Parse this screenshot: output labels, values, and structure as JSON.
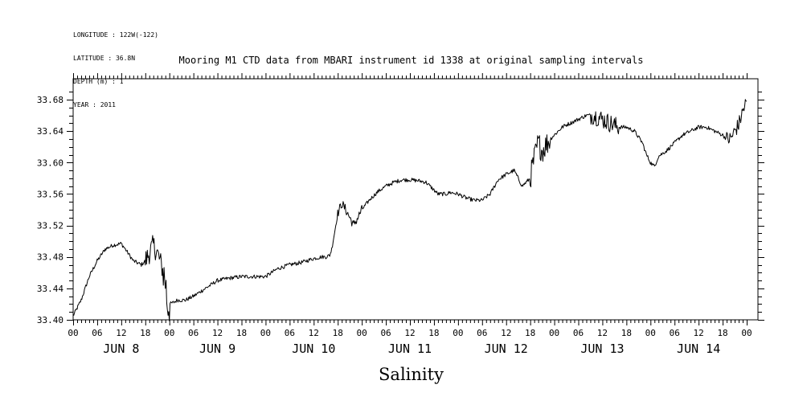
{
  "meta_lines": [
    "LONGITUDE : 122W(-122)",
    "LATITUDE : 36.8N",
    "DEPTH (m) : 1",
    "YEAR : 2011"
  ],
  "chart_data": {
    "type": "line",
    "title": "Mooring M1 CTD data from MBARI instrument id 1338 at original sampling intervals",
    "xlabel": "Salinity",
    "ylabel": "",
    "y_ticks": [
      "33.40",
      "33.44",
      "33.48",
      "33.52",
      "33.56",
      "33.60",
      "33.64",
      "33.68"
    ],
    "ylim": [
      33.4,
      33.69
    ],
    "x_unit": "hours since JUN 8 00",
    "xlim": [
      0,
      168
    ],
    "x_tick_labels": [
      "00",
      "06",
      "12",
      "18",
      "00",
      "06",
      "12",
      "18",
      "00",
      "06",
      "12",
      "18",
      "00",
      "06",
      "12",
      "18",
      "00",
      "06",
      "12",
      "18",
      "00",
      "06",
      "12",
      "18",
      "00",
      "06",
      "12",
      "18",
      "00"
    ],
    "day_labels": [
      "JUN  8",
      "JUN  9",
      "JUN 10",
      "JUN 11",
      "JUN 12",
      "JUN 13",
      "JUN 14"
    ],
    "series": [
      {
        "x": [
          0,
          2,
          4,
          6,
          8,
          10,
          12,
          13,
          15,
          17,
          18,
          19,
          20,
          21,
          22,
          23,
          23.5,
          24,
          25,
          26,
          28,
          30,
          33,
          36,
          39,
          42,
          45,
          48,
          51,
          54,
          57,
          60,
          62,
          63,
          64,
          64.5,
          65,
          66,
          67,
          68,
          69,
          70,
          71,
          72,
          74,
          76,
          78,
          80,
          82,
          84,
          86,
          88,
          90,
          91,
          92,
          93,
          94,
          96,
          98,
          100,
          102,
          104,
          106,
          108,
          110,
          112,
          114,
          115,
          116,
          117,
          118,
          119,
          120,
          121,
          122,
          123,
          124,
          126,
          128,
          130,
          132,
          134,
          136,
          138,
          140,
          142,
          143,
          144,
          145,
          146,
          148,
          150,
          152,
          154,
          156,
          158,
          160,
          162,
          163,
          164,
          165,
          166,
          167,
          168
        ],
        "y": [
          33.405,
          33.425,
          33.455,
          33.475,
          33.49,
          33.495,
          33.497,
          33.49,
          33.475,
          33.47,
          33.475,
          33.485,
          33.495,
          33.485,
          33.47,
          33.45,
          33.42,
          33.42,
          33.422,
          33.425,
          33.425,
          33.43,
          33.44,
          33.45,
          33.453,
          33.455,
          33.455,
          33.455,
          33.465,
          33.47,
          33.473,
          33.478,
          33.48,
          33.48,
          33.482,
          33.49,
          33.505,
          33.535,
          33.548,
          33.54,
          33.53,
          33.52,
          33.53,
          33.54,
          33.553,
          33.563,
          33.57,
          33.575,
          33.578,
          33.578,
          33.577,
          33.575,
          33.565,
          33.56,
          33.56,
          33.56,
          33.562,
          33.56,
          33.555,
          33.552,
          33.552,
          33.56,
          33.578,
          33.585,
          33.59,
          33.57,
          33.58,
          33.605,
          33.625,
          33.615,
          33.623,
          33.63,
          33.635,
          33.64,
          33.645,
          33.648,
          33.65,
          33.655,
          33.66,
          33.66,
          33.655,
          33.65,
          33.645,
          33.645,
          33.64,
          33.625,
          33.61,
          33.6,
          33.595,
          33.608,
          33.615,
          33.625,
          33.635,
          33.64,
          33.645,
          33.645,
          33.64,
          33.635,
          33.63,
          33.63,
          33.64,
          33.648,
          33.665,
          33.678
        ]
      }
    ],
    "grid": false
  }
}
